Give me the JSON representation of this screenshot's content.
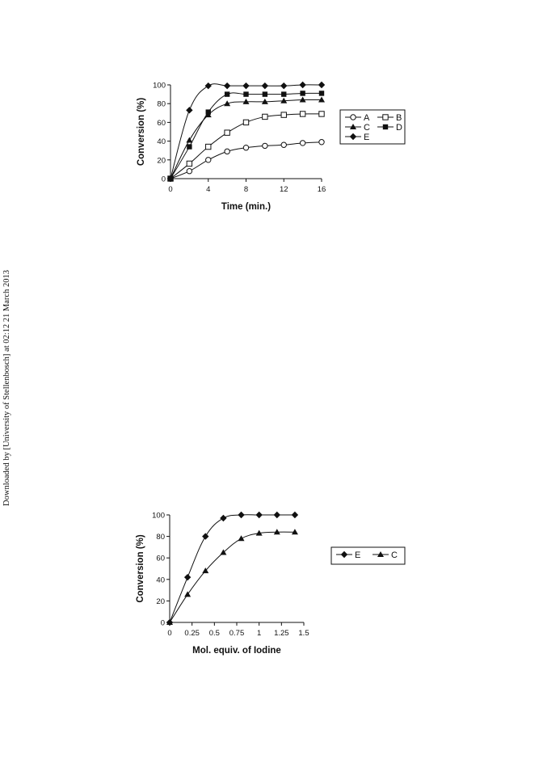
{
  "side_note": "Downloaded by [University of Stellenbosch] at 02:12 21 March 2013",
  "chart_data": [
    {
      "type": "line",
      "xlabel": "Time (min.)",
      "ylabel": "Conversion (%)",
      "xlim": [
        0,
        16
      ],
      "ylim": [
        0,
        100
      ],
      "xticks": [
        "0",
        "4",
        "8",
        "12",
        "16"
      ],
      "yticks": [
        "0",
        "20",
        "40",
        "60",
        "80",
        "100"
      ],
      "legend_position": "right",
      "series": [
        {
          "name": "A",
          "marker": "circle-open",
          "points": [
            [
              0,
              0
            ],
            [
              2,
              8
            ],
            [
              4,
              20
            ],
            [
              6,
              29
            ],
            [
              8,
              33
            ],
            [
              10,
              35
            ],
            [
              12,
              36
            ],
            [
              14,
              38
            ],
            [
              16,
              39
            ]
          ]
        },
        {
          "name": "B",
          "marker": "square-open",
          "points": [
            [
              0,
              0
            ],
            [
              2,
              16
            ],
            [
              4,
              34
            ],
            [
              6,
              49
            ],
            [
              8,
              60
            ],
            [
              10,
              66
            ],
            [
              12,
              68
            ],
            [
              14,
              69
            ],
            [
              16,
              69
            ]
          ]
        },
        {
          "name": "C",
          "marker": "triangle",
          "points": [
            [
              0,
              0
            ],
            [
              2,
              41
            ],
            [
              4,
              68
            ],
            [
              6,
              80
            ],
            [
              8,
              82
            ],
            [
              10,
              82
            ],
            [
              12,
              83
            ],
            [
              14,
              84
            ],
            [
              16,
              84
            ]
          ]
        },
        {
          "name": "D",
          "marker": "square",
          "points": [
            [
              0,
              0
            ],
            [
              2,
              34
            ],
            [
              4,
              71
            ],
            [
              6,
              90
            ],
            [
              8,
              90
            ],
            [
              10,
              90
            ],
            [
              12,
              90
            ],
            [
              14,
              91
            ],
            [
              16,
              91
            ]
          ]
        },
        {
          "name": "E",
          "marker": "diamond",
          "points": [
            [
              0,
              0
            ],
            [
              2,
              73
            ],
            [
              4,
              99
            ],
            [
              6,
              99
            ],
            [
              8,
              99
            ],
            [
              10,
              99
            ],
            [
              12,
              99
            ],
            [
              14,
              100
            ],
            [
              16,
              100
            ]
          ]
        }
      ]
    },
    {
      "type": "line",
      "xlabel": "Mol. equiv. of Iodine",
      "ylabel": "Conversion (%)",
      "xlim": [
        0,
        1.5
      ],
      "ylim": [
        0,
        100
      ],
      "xticks": [
        "0",
        "0.25",
        "0.5",
        "0.75",
        "1",
        "1.25",
        "1.5"
      ],
      "yticks": [
        "0",
        "20",
        "40",
        "60",
        "80",
        "100"
      ],
      "legend_position": "right",
      "series": [
        {
          "name": "E",
          "marker": "diamond",
          "points": [
            [
              0,
              0
            ],
            [
              0.2,
              42
            ],
            [
              0.4,
              80
            ],
            [
              0.6,
              97
            ],
            [
              0.8,
              100
            ],
            [
              1.0,
              100
            ],
            [
              1.2,
              100
            ],
            [
              1.4,
              100
            ]
          ]
        },
        {
          "name": "C",
          "marker": "triangle",
          "points": [
            [
              0,
              0
            ],
            [
              0.2,
              26
            ],
            [
              0.4,
              48
            ],
            [
              0.6,
              65
            ],
            [
              0.8,
              78
            ],
            [
              1.0,
              83
            ],
            [
              1.2,
              84
            ],
            [
              1.4,
              84
            ]
          ]
        }
      ]
    }
  ]
}
